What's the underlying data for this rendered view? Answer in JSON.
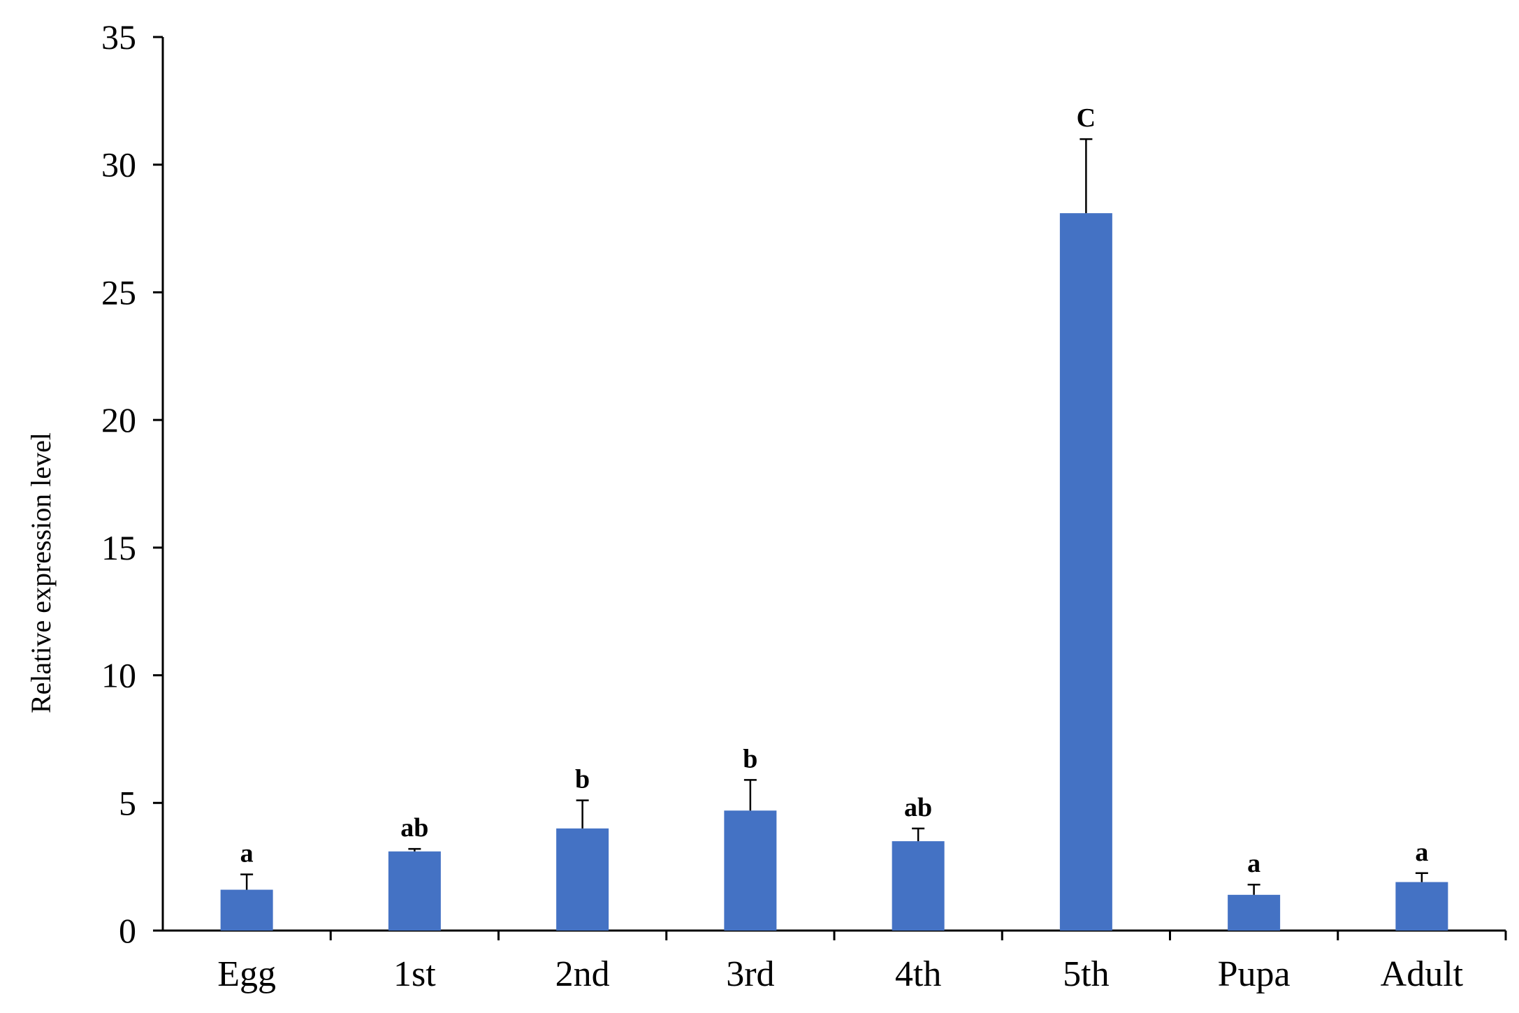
{
  "chart_data": {
    "type": "bar",
    "title": "",
    "xlabel": "",
    "ylabel": "Relative  expression  level",
    "ylim": [
      0,
      35
    ],
    "yticks": [
      0,
      5,
      10,
      15,
      20,
      25,
      30,
      35
    ],
    "grid": false,
    "legend": "none",
    "bar_color": "#4472c4",
    "categories": [
      "Egg",
      "1st",
      "2nd",
      "3rd",
      "4th",
      "5th",
      "Pupa",
      "Adult"
    ],
    "values": [
      1.6,
      3.1,
      4.0,
      4.7,
      3.5,
      28.1,
      1.4,
      1.9
    ],
    "errors": [
      0.6,
      0.1,
      1.1,
      1.2,
      0.5,
      2.9,
      0.4,
      0.35
    ],
    "significance": [
      "a",
      "ab",
      "b",
      "b",
      "ab",
      "C",
      "a",
      "a"
    ]
  }
}
